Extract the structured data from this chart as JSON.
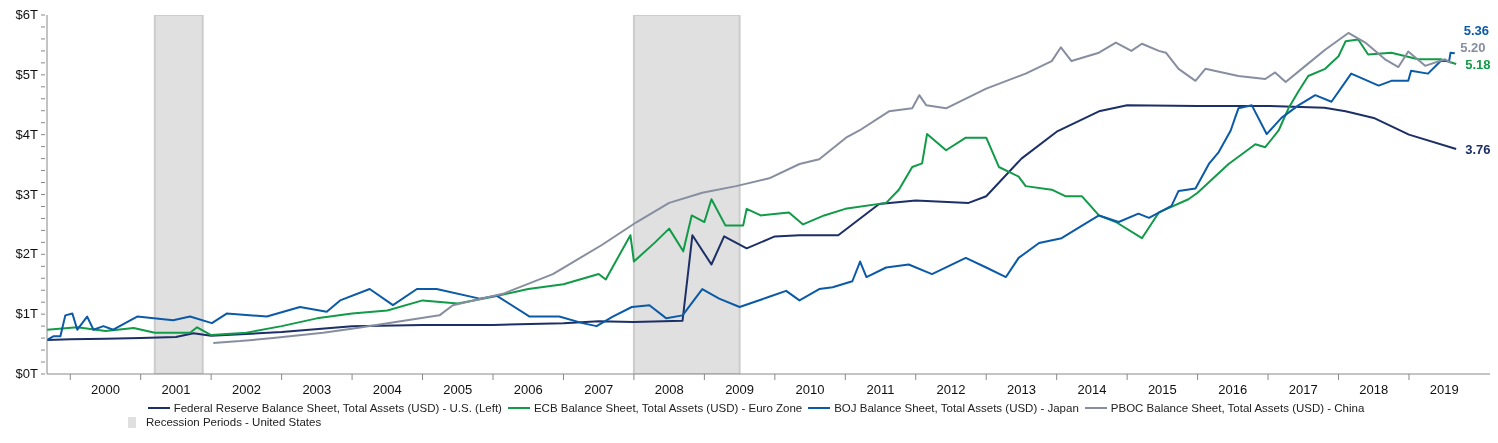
{
  "chart_data": {
    "type": "line",
    "xlim": [
      1999.67,
      2020.15
    ],
    "xticks": [
      {
        "value": 2000,
        "label": null
      },
      {
        "value": 2000.5,
        "label": "2000"
      },
      {
        "value": 2001,
        "label": null
      },
      {
        "value": 2001.5,
        "label": "2001"
      },
      {
        "value": 2002,
        "label": null
      },
      {
        "value": 2002.5,
        "label": "2002"
      },
      {
        "value": 2003,
        "label": null
      },
      {
        "value": 2003.5,
        "label": "2003"
      },
      {
        "value": 2004,
        "label": null
      },
      {
        "value": 2004.5,
        "label": "2004"
      },
      {
        "value": 2005,
        "label": null
      },
      {
        "value": 2005.5,
        "label": "2005"
      },
      {
        "value": 2006,
        "label": null
      },
      {
        "value": 2006.5,
        "label": "2006"
      },
      {
        "value": 2007,
        "label": null
      },
      {
        "value": 2007.5,
        "label": "2007"
      },
      {
        "value": 2008,
        "label": null
      },
      {
        "value": 2008.5,
        "label": "2008"
      },
      {
        "value": 2009,
        "label": null
      },
      {
        "value": 2009.5,
        "label": "2009"
      },
      {
        "value": 2010,
        "label": null
      },
      {
        "value": 2010.5,
        "label": "2010"
      },
      {
        "value": 2011,
        "label": null
      },
      {
        "value": 2011.5,
        "label": "2011"
      },
      {
        "value": 2012,
        "label": null
      },
      {
        "value": 2012.5,
        "label": "2012"
      },
      {
        "value": 2013,
        "label": null
      },
      {
        "value": 2013.5,
        "label": "2013"
      },
      {
        "value": 2014,
        "label": null
      },
      {
        "value": 2014.5,
        "label": "2014"
      },
      {
        "value": 2015,
        "label": null
      },
      {
        "value": 2015.5,
        "label": "2015"
      },
      {
        "value": 2016,
        "label": null
      },
      {
        "value": 2016.5,
        "label": "2016"
      },
      {
        "value": 2017,
        "label": null
      },
      {
        "value": 2017.5,
        "label": "2017"
      },
      {
        "value": 2018,
        "label": null
      },
      {
        "value": 2018.5,
        "label": "2018"
      },
      {
        "value": 2019,
        "label": null
      },
      {
        "value": 2019.5,
        "label": "2019"
      }
    ],
    "ylim": [
      0,
      6
    ],
    "yticks": [
      {
        "value": 0,
        "label": "$0T"
      },
      {
        "value": 0.2,
        "label": null
      },
      {
        "value": 0.4,
        "label": null
      },
      {
        "value": 0.6,
        "label": null
      },
      {
        "value": 0.8,
        "label": null
      },
      {
        "value": 1,
        "label": "$1T"
      },
      {
        "value": 1.2,
        "label": null
      },
      {
        "value": 1.4,
        "label": null
      },
      {
        "value": 1.6,
        "label": null
      },
      {
        "value": 1.8,
        "label": null
      },
      {
        "value": 2,
        "label": "$2T"
      },
      {
        "value": 2.2,
        "label": null
      },
      {
        "value": 2.4,
        "label": null
      },
      {
        "value": 2.6,
        "label": null
      },
      {
        "value": 2.8,
        "label": null
      },
      {
        "value": 3,
        "label": "$3T"
      },
      {
        "value": 3.2,
        "label": null
      },
      {
        "value": 3.4,
        "label": null
      },
      {
        "value": 3.6,
        "label": null
      },
      {
        "value": 3.8,
        "label": null
      },
      {
        "value": 4,
        "label": "$4T"
      },
      {
        "value": 4.2,
        "label": null
      },
      {
        "value": 4.4,
        "label": null
      },
      {
        "value": 4.6,
        "label": null
      },
      {
        "value": 4.8,
        "label": null
      },
      {
        "value": 5,
        "label": "$5T"
      },
      {
        "value": 5.2,
        "label": null
      },
      {
        "value": 5.4,
        "label": null
      },
      {
        "value": 5.6,
        "label": null
      },
      {
        "value": 5.8,
        "label": null
      },
      {
        "value": 6,
        "label": "$6T"
      }
    ],
    "grid": false,
    "legend": "bottom",
    "marker": "none",
    "line_style": "solid",
    "bands": [
      {
        "axis": "x",
        "from": 2001.2,
        "to": 2001.88,
        "label": "Recession Periods - United States",
        "color": "#e0e0e0"
      },
      {
        "axis": "x",
        "from": 2008.0,
        "to": 2009.5,
        "color": "#e0e0e0"
      }
    ],
    "series": [
      {
        "name": "Federal Reserve Balance Sheet, Total Assets (USD) - U.S. (Left)",
        "color": "#1c2f66",
        "x": [
          1999.67,
          2000.0,
          2000.5,
          2001.0,
          2001.5,
          2001.75,
          2002.0,
          2003.0,
          2004.0,
          2005.0,
          2006.0,
          2007.0,
          2007.5,
          2008.0,
          2008.69,
          2008.83,
          2009.1,
          2009.28,
          2009.6,
          2010.0,
          2010.35,
          2010.9,
          2011.48,
          2012.0,
          2012.75,
          2013.0,
          2013.5,
          2014.0,
          2014.6,
          2015.0,
          2016.0,
          2017.0,
          2017.8,
          2018.1,
          2018.5,
          2019.0,
          2019.67
        ],
        "values": [
          0.57,
          0.58,
          0.59,
          0.6,
          0.62,
          0.68,
          0.64,
          0.7,
          0.8,
          0.82,
          0.82,
          0.85,
          0.88,
          0.87,
          0.89,
          2.32,
          1.83,
          2.3,
          2.1,
          2.3,
          2.32,
          2.32,
          2.84,
          2.9,
          2.86,
          2.97,
          3.6,
          4.05,
          4.39,
          4.49,
          4.48,
          4.48,
          4.45,
          4.39,
          4.28,
          4.0,
          3.76
        ],
        "value_labels": [
          null,
          null,
          null,
          null,
          null,
          null,
          null,
          null,
          null,
          null,
          null,
          null,
          null,
          null,
          null,
          null,
          null,
          null,
          null,
          null,
          null,
          null,
          null,
          null,
          null,
          null,
          null,
          null,
          null,
          null,
          null,
          null,
          null,
          null,
          null,
          null,
          "3.76"
        ]
      },
      {
        "name": "ECB Balance Sheet, Total Assets (USD) - Euro Zone",
        "color": "#119a48",
        "x": [
          1999.67,
          2000.1,
          2000.5,
          2000.9,
          2001.2,
          2001.7,
          2001.8,
          2002.0,
          2002.5,
          2003.0,
          2003.5,
          2004.0,
          2004.5,
          2005.0,
          2005.5,
          2006.0,
          2006.5,
          2007.0,
          2007.5,
          2007.6,
          2007.95,
          2008.0,
          2008.3,
          2008.5,
          2008.7,
          2008.82,
          2009.0,
          2009.1,
          2009.3,
          2009.55,
          2009.6,
          2009.8,
          2010.2,
          2010.4,
          2010.7,
          2011.0,
          2011.58,
          2011.76,
          2011.95,
          2012.09,
          2012.16,
          2012.43,
          2012.71,
          2013.0,
          2013.18,
          2013.46,
          2013.56,
          2013.93,
          2014.13,
          2014.36,
          2014.6,
          2014.84,
          2015.21,
          2015.45,
          2015.87,
          2016.0,
          2016.44,
          2016.82,
          2016.96,
          2017.15,
          2017.29,
          2017.43,
          2017.57,
          2017.81,
          2018.0,
          2018.1,
          2018.28,
          2018.42,
          2018.75,
          2019.13,
          2019.45,
          2019.67
        ],
        "values": [
          0.74,
          0.78,
          0.72,
          0.77,
          0.69,
          0.69,
          0.78,
          0.65,
          0.69,
          0.8,
          0.93,
          1.01,
          1.06,
          1.23,
          1.18,
          1.29,
          1.42,
          1.5,
          1.67,
          1.58,
          2.32,
          1.88,
          2.2,
          2.43,
          2.05,
          2.65,
          2.54,
          2.92,
          2.48,
          2.48,
          2.76,
          2.65,
          2.7,
          2.5,
          2.65,
          2.76,
          2.86,
          3.08,
          3.46,
          3.52,
          4.01,
          3.74,
          3.95,
          3.95,
          3.46,
          3.3,
          3.14,
          3.08,
          2.97,
          2.97,
          2.65,
          2.54,
          2.27,
          2.7,
          2.92,
          3.03,
          3.51,
          3.84,
          3.79,
          4.07,
          4.44,
          4.72,
          4.98,
          5.1,
          5.31,
          5.56,
          5.59,
          5.34,
          5.37,
          5.26,
          5.26,
          5.18
        ],
        "value_labels": [
          null,
          null,
          null,
          null,
          null,
          null,
          null,
          null,
          null,
          null,
          null,
          null,
          null,
          null,
          null,
          null,
          null,
          null,
          null,
          null,
          null,
          null,
          null,
          null,
          null,
          null,
          null,
          null,
          null,
          null,
          null,
          null,
          null,
          null,
          null,
          null,
          null,
          null,
          null,
          null,
          null,
          null,
          null,
          null,
          null,
          null,
          null,
          null,
          null,
          null,
          null,
          null,
          null,
          null,
          null,
          null,
          null,
          null,
          null,
          null,
          null,
          null,
          null,
          null,
          null,
          null,
          null,
          null,
          null,
          null,
          null,
          "5.18"
        ]
      },
      {
        "name": "BOJ Balance Sheet, Total Assets (USD) - Japan",
        "color": "#0b5aa8",
        "x": [
          1999.67,
          1999.76,
          1999.86,
          1999.93,
          2000.03,
          2000.1,
          2000.24,
          2000.33,
          2000.47,
          2000.61,
          2000.95,
          2001.46,
          2001.7,
          2002.01,
          2002.22,
          2002.79,
          2003.26,
          2003.64,
          2003.83,
          2004.25,
          2004.58,
          2004.92,
          2005.2,
          2005.81,
          2006.05,
          2006.52,
          2006.94,
          2007.27,
          2007.47,
          2007.7,
          2007.97,
          2008.22,
          2008.46,
          2008.69,
          2008.97,
          2009.21,
          2009.5,
          2009.92,
          2010.16,
          2010.35,
          2010.63,
          2010.82,
          2011.1,
          2011.21,
          2011.3,
          2011.58,
          2011.9,
          2012.23,
          2012.71,
          2013.0,
          2013.28,
          2013.46,
          2013.75,
          2014.07,
          2014.36,
          2014.6,
          2014.88,
          2015.16,
          2015.31,
          2015.63,
          2015.73,
          2015.97,
          2016.16,
          2016.3,
          2016.47,
          2016.54,
          2016.58,
          2016.77,
          2016.98,
          2017.19,
          2017.43,
          2017.67,
          2017.9,
          2018.18,
          2018.57,
          2018.75,
          2018.99,
          2019.03,
          2019.27,
          2019.45,
          2019.57,
          2019.59,
          2019.65
        ],
        "values": [
          0.57,
          0.63,
          0.63,
          0.98,
          1.01,
          0.74,
          0.96,
          0.74,
          0.8,
          0.74,
          0.96,
          0.9,
          0.96,
          0.85,
          1.01,
          0.96,
          1.12,
          1.04,
          1.23,
          1.42,
          1.15,
          1.42,
          1.42,
          1.26,
          1.31,
          0.96,
          0.96,
          0.85,
          0.8,
          0.96,
          1.12,
          1.15,
          0.93,
          0.98,
          1.42,
          1.26,
          1.12,
          1.29,
          1.39,
          1.23,
          1.42,
          1.45,
          1.55,
          1.88,
          1.62,
          1.78,
          1.83,
          1.67,
          1.94,
          1.78,
          1.62,
          1.94,
          2.19,
          2.27,
          2.48,
          2.65,
          2.54,
          2.68,
          2.61,
          2.81,
          3.06,
          3.1,
          3.51,
          3.71,
          4.07,
          4.31,
          4.44,
          4.49,
          4.01,
          4.28,
          4.49,
          4.66,
          4.55,
          5.02,
          4.82,
          4.9,
          4.9,
          5.07,
          5.02,
          5.23,
          5.23,
          5.37,
          5.36
        ],
        "value_labels": [
          null,
          null,
          null,
          null,
          null,
          null,
          null,
          null,
          null,
          null,
          null,
          null,
          null,
          null,
          null,
          null,
          null,
          null,
          null,
          null,
          null,
          null,
          null,
          null,
          null,
          null,
          null,
          null,
          null,
          null,
          null,
          null,
          null,
          null,
          null,
          null,
          null,
          null,
          null,
          null,
          null,
          null,
          null,
          null,
          null,
          null,
          null,
          null,
          null,
          null,
          null,
          null,
          null,
          null,
          null,
          null,
          null,
          null,
          null,
          null,
          null,
          null,
          null,
          null,
          null,
          null,
          null,
          null,
          null,
          null,
          null,
          null,
          null,
          null,
          null,
          null,
          null,
          null,
          null,
          null,
          null,
          null,
          "5.36"
        ]
      },
      {
        "name": "PBOC Balance Sheet, Total Assets (USD) - China",
        "color": "#868e9f",
        "x": [
          2002.03,
          2002.41,
          2002.88,
          2003.59,
          2004.07,
          2004.78,
          2005.24,
          2005.43,
          2006.14,
          2006.85,
          2007.55,
          2008.04,
          2008.5,
          2008.97,
          2009.45,
          2009.92,
          2010.35,
          2010.63,
          2011.01,
          2011.2,
          2011.62,
          2011.95,
          2012.05,
          2012.15,
          2012.43,
          2013.0,
          2013.56,
          2013.93,
          2014.06,
          2014.21,
          2014.6,
          2014.84,
          2015.06,
          2015.21,
          2015.45,
          2015.55,
          2015.73,
          2015.97,
          2016.11,
          2016.58,
          2016.96,
          2017.1,
          2017.25,
          2017.53,
          2017.81,
          2018.14,
          2018.38,
          2018.66,
          2018.85,
          2018.99,
          2019.23,
          2019.51,
          2019.6
        ],
        "values": [
          0.52,
          0.55,
          0.6,
          0.69,
          0.77,
          0.9,
          0.98,
          1.15,
          1.34,
          1.67,
          2.16,
          2.54,
          2.86,
          3.03,
          3.14,
          3.27,
          3.51,
          3.59,
          3.95,
          4.07,
          4.39,
          4.44,
          4.66,
          4.49,
          4.44,
          4.77,
          5.02,
          5.23,
          5.46,
          5.23,
          5.37,
          5.54,
          5.4,
          5.52,
          5.4,
          5.37,
          5.1,
          4.9,
          5.1,
          4.98,
          4.93,
          5.04,
          4.88,
          5.15,
          5.42,
          5.7,
          5.54,
          5.26,
          5.13,
          5.39,
          5.15,
          5.26,
          5.2
        ],
        "value_labels": [
          null,
          null,
          null,
          null,
          null,
          null,
          null,
          null,
          null,
          null,
          null,
          null,
          null,
          null,
          null,
          null,
          null,
          null,
          null,
          null,
          null,
          null,
          null,
          null,
          null,
          null,
          null,
          null,
          null,
          null,
          null,
          null,
          null,
          null,
          null,
          null,
          null,
          null,
          null,
          null,
          null,
          null,
          null,
          null,
          null,
          null,
          null,
          null,
          null,
          null,
          null,
          null,
          "5.20"
        ]
      }
    ]
  }
}
